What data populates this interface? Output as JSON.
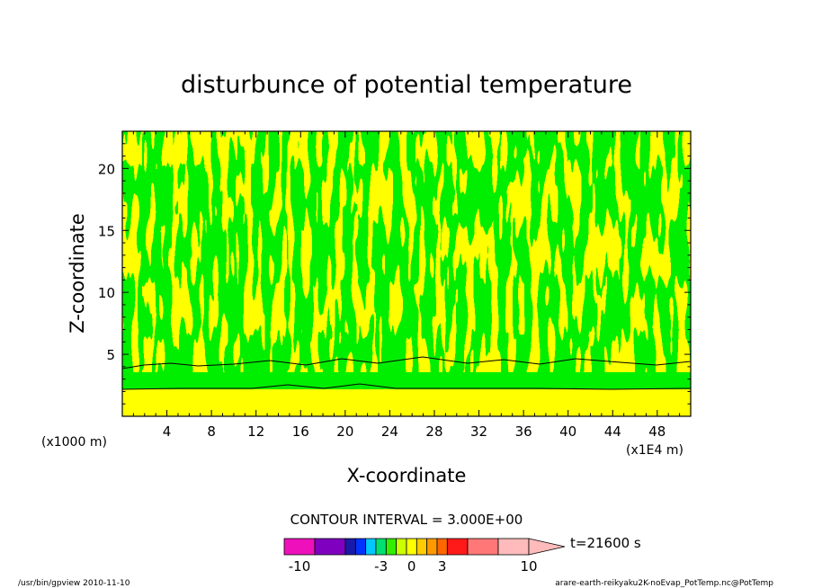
{
  "chart_data": {
    "type": "heatmap",
    "title": "disturbunce of potential temperature",
    "xlabel": "X-coordinate",
    "ylabel": "Z-coordinate",
    "x_unit": "(x1E4 m)",
    "y_unit": "(x1000 m)",
    "xlim": [
      0,
      51
    ],
    "ylim": [
      0,
      23
    ],
    "x_ticks": [
      4,
      8,
      12,
      16,
      20,
      24,
      28,
      32,
      36,
      40,
      44,
      48
    ],
    "y_ticks": [
      5,
      10,
      15,
      20
    ],
    "contour_interval_text": "CONTOUR INTERVAL = 3.000E+00",
    "time_label": "t=21600 s",
    "colorbar": {
      "colors": [
        "#ee11bb",
        "#7f00bf",
        "#1a1aa8",
        "#0033ff",
        "#00c8ff",
        "#00e070",
        "#33ee00",
        "#ccff00",
        "#ffff00",
        "#ffcc00",
        "#ff9900",
        "#ff6600",
        "#ff1a1a",
        "#ff7777",
        "#ffbbbb"
      ],
      "tick_labels": [
        "-10",
        "-3",
        "0",
        "3",
        "10"
      ]
    },
    "field_colors": {
      "green": "#00ee00",
      "yellow": "#ffff00"
    }
  },
  "footer": {
    "left": "/usr/bin/gpview   2010-11-10",
    "right": "arare-earth-reikyaku2K-noEvap_PotTemp.nc@PotTemp"
  }
}
